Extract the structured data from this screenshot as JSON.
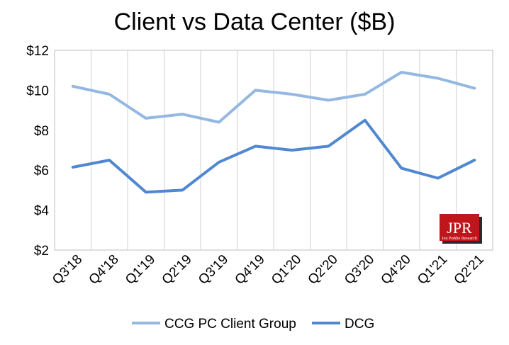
{
  "chart_data": {
    "type": "line",
    "title": "Client vs Data Center ($B)",
    "categories": [
      "Q3'18",
      "Q4'18",
      "Q1'19",
      "Q2'19",
      "Q3'19",
      "Q4'19",
      "Q1'20",
      "Q2'20",
      "Q3'20",
      "Q4'20",
      "Q1'21",
      "Q2'21"
    ],
    "y_tick_labels": [
      "$2",
      "$4",
      "$6",
      "$8",
      "$10",
      "$12"
    ],
    "y_ticks": [
      2,
      4,
      6,
      8,
      10,
      12
    ],
    "ylim": [
      2,
      12
    ],
    "grid": "vertical",
    "legend_position": "bottom",
    "series": [
      {
        "name": "CCG PC Client Group",
        "color": "#94b8e2",
        "values": [
          10.2,
          9.8,
          8.6,
          8.8,
          8.4,
          10.0,
          9.8,
          9.5,
          9.8,
          10.9,
          10.6,
          10.1
        ]
      },
      {
        "name": "DCG",
        "color": "#4f88d1",
        "values": [
          6.15,
          6.5,
          4.9,
          5.0,
          6.4,
          7.2,
          7.0,
          7.2,
          8.5,
          6.1,
          5.6,
          6.5
        ]
      }
    ]
  },
  "logo": {
    "text": "JPR",
    "subtext": "Jon Peddie Research",
    "color": "#c0151b"
  }
}
